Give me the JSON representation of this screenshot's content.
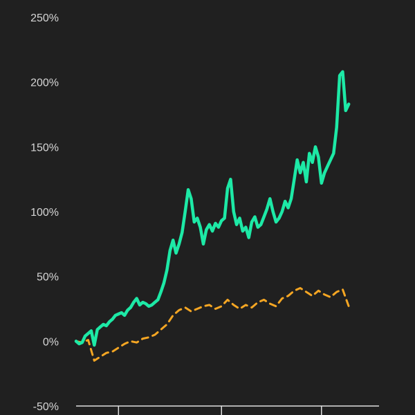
{
  "chart_data": {
    "type": "line",
    "title": "",
    "xlabel": "",
    "ylabel": "",
    "ylim": [
      -50,
      250
    ],
    "yticks": [
      -50,
      0,
      50,
      100,
      150,
      200,
      250
    ],
    "ytick_labels": [
      "-50%",
      "0%",
      "50%",
      "100%",
      "150%",
      "200%",
      "250%"
    ],
    "xlim": [
      0,
      100
    ],
    "x_ticks": [
      14,
      48,
      81
    ],
    "grid": false,
    "legend": "none",
    "series": [
      {
        "color": "#1de9a6",
        "style": "solid",
        "points": [
          [
            0,
            0
          ],
          [
            1,
            -2
          ],
          [
            2,
            -1
          ],
          [
            3,
            4
          ],
          [
            4,
            6
          ],
          [
            5,
            8
          ],
          [
            6,
            -3
          ],
          [
            7,
            9
          ],
          [
            8,
            11
          ],
          [
            9,
            13
          ],
          [
            10,
            12
          ],
          [
            11,
            15
          ],
          [
            12,
            17
          ],
          [
            13,
            20
          ],
          [
            14,
            21
          ],
          [
            15,
            22
          ],
          [
            16,
            20
          ],
          [
            17,
            24
          ],
          [
            18,
            26
          ],
          [
            19,
            30
          ],
          [
            20,
            33
          ],
          [
            21,
            28
          ],
          [
            22,
            30
          ],
          [
            23,
            29
          ],
          [
            24,
            27
          ],
          [
            25,
            28
          ],
          [
            26,
            30
          ],
          [
            27,
            32
          ],
          [
            28,
            38
          ],
          [
            29,
            45
          ],
          [
            30,
            55
          ],
          [
            31,
            70
          ],
          [
            32,
            78
          ],
          [
            33,
            68
          ],
          [
            34,
            75
          ],
          [
            35,
            84
          ],
          [
            36,
            100
          ],
          [
            37,
            117
          ],
          [
            38,
            110
          ],
          [
            39,
            92
          ],
          [
            40,
            95
          ],
          [
            41,
            88
          ],
          [
            42,
            75
          ],
          [
            43,
            86
          ],
          [
            44,
            90
          ],
          [
            45,
            85
          ],
          [
            46,
            91
          ],
          [
            47,
            88
          ],
          [
            48,
            93
          ],
          [
            49,
            95
          ],
          [
            50,
            118
          ],
          [
            51,
            125
          ],
          [
            52,
            100
          ],
          [
            53,
            90
          ],
          [
            54,
            95
          ],
          [
            55,
            85
          ],
          [
            56,
            88
          ],
          [
            57,
            80
          ],
          [
            58,
            92
          ],
          [
            59,
            96
          ],
          [
            60,
            88
          ],
          [
            61,
            90
          ],
          [
            62,
            96
          ],
          [
            63,
            102
          ],
          [
            64,
            110
          ],
          [
            65,
            100
          ],
          [
            66,
            92
          ],
          [
            67,
            95
          ],
          [
            68,
            100
          ],
          [
            69,
            108
          ],
          [
            70,
            103
          ],
          [
            71,
            110
          ],
          [
            72,
            125
          ],
          [
            73,
            140
          ],
          [
            74,
            130
          ],
          [
            75,
            138
          ],
          [
            76,
            123
          ],
          [
            77,
            145
          ],
          [
            78,
            138
          ],
          [
            79,
            150
          ],
          [
            80,
            142
          ],
          [
            81,
            122
          ],
          [
            82,
            130
          ],
          [
            83,
            135
          ],
          [
            84,
            140
          ],
          [
            85,
            145
          ],
          [
            86,
            165
          ],
          [
            87,
            205
          ],
          [
            88,
            208
          ],
          [
            89,
            178
          ],
          [
            90,
            183
          ]
        ]
      },
      {
        "color": "#f5a623",
        "style": "dashed",
        "points": [
          [
            0,
            0
          ],
          [
            2,
            -1
          ],
          [
            4,
            1
          ],
          [
            6,
            -15
          ],
          [
            8,
            -12
          ],
          [
            10,
            -9
          ],
          [
            12,
            -8
          ],
          [
            14,
            -5
          ],
          [
            16,
            -2
          ],
          [
            18,
            0
          ],
          [
            20,
            -1
          ],
          [
            22,
            2
          ],
          [
            24,
            3
          ],
          [
            26,
            5
          ],
          [
            28,
            9
          ],
          [
            30,
            13
          ],
          [
            32,
            20
          ],
          [
            34,
            24
          ],
          [
            36,
            26
          ],
          [
            38,
            23
          ],
          [
            40,
            25
          ],
          [
            42,
            27
          ],
          [
            44,
            28
          ],
          [
            46,
            25
          ],
          [
            48,
            27
          ],
          [
            50,
            32
          ],
          [
            52,
            28
          ],
          [
            54,
            25
          ],
          [
            56,
            28
          ],
          [
            58,
            26
          ],
          [
            60,
            30
          ],
          [
            62,
            32
          ],
          [
            64,
            29
          ],
          [
            66,
            27
          ],
          [
            68,
            33
          ],
          [
            70,
            35
          ],
          [
            72,
            39
          ],
          [
            74,
            41
          ],
          [
            76,
            38
          ],
          [
            78,
            35
          ],
          [
            80,
            39
          ],
          [
            82,
            36
          ],
          [
            84,
            34
          ],
          [
            86,
            38
          ],
          [
            88,
            40
          ],
          [
            90,
            27
          ]
        ]
      }
    ]
  }
}
